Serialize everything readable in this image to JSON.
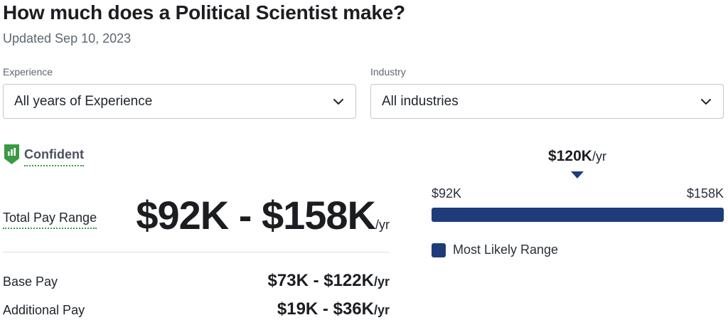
{
  "header": {
    "title": "How much does a Political Scientist make?",
    "updated": "Updated Sep 10, 2023"
  },
  "filters": {
    "experience": {
      "label": "Experience",
      "value": "All years of Experience",
      "icon": "chevron-down-icon"
    },
    "industry": {
      "label": "Industry",
      "value": "All industries",
      "icon": "chevron-down-icon"
    }
  },
  "confidence": {
    "label": "Confident",
    "icon": "confidence-shield-icon",
    "color": "#3a9a43"
  },
  "total_pay": {
    "label": "Total Pay Range",
    "value": "$92K - $158K",
    "unit": "/yr"
  },
  "base_pay": {
    "label": "Base Pay",
    "value": "$73K - $122K",
    "unit": "/yr"
  },
  "additional_pay": {
    "label": "Additional Pay",
    "value": "$19K - $36K",
    "unit": "/yr"
  },
  "range_chart": {
    "median_value": "$120K",
    "median_unit": "/yr",
    "min_label": "$92K",
    "max_label": "$158K",
    "legend": "Most Likely Range",
    "bar_color": "#1e3c7c"
  }
}
